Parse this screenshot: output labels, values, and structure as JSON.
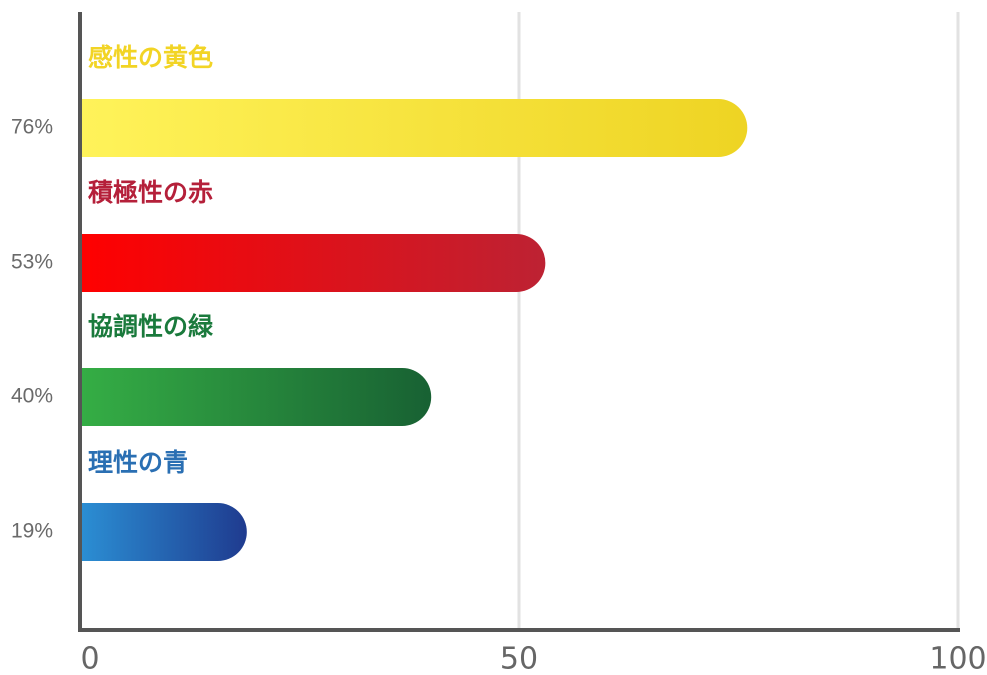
{
  "chart_data": {
    "type": "bar",
    "orientation": "horizontal",
    "categories": [
      "感性の黄色",
      "積極性の赤",
      "協調性の緑",
      "理性の青"
    ],
    "values": [
      76,
      53,
      40,
      19
    ],
    "value_labels": [
      "76%",
      "53%",
      "40%",
      "19%"
    ],
    "colors": [
      {
        "from": "#fff35a",
        "to": "#eed423",
        "label": "#f2d425"
      },
      {
        "from": "#ff0000",
        "to": "#bd2233",
        "label": "#b5203a"
      },
      {
        "from": "#35ae45",
        "to": "#186133",
        "label": "#1a7a3c"
      },
      {
        "from": "#2b8fd4",
        "to": "#1f3b8f",
        "label": "#2a6fb3"
      }
    ],
    "xlim": [
      0,
      100
    ],
    "x_ticks": [
      0,
      50,
      100
    ],
    "x_tick_labels": [
      "0",
      "50",
      "100"
    ],
    "grid": "vertical",
    "xlabel": "",
    "ylabel": "",
    "title": ""
  }
}
